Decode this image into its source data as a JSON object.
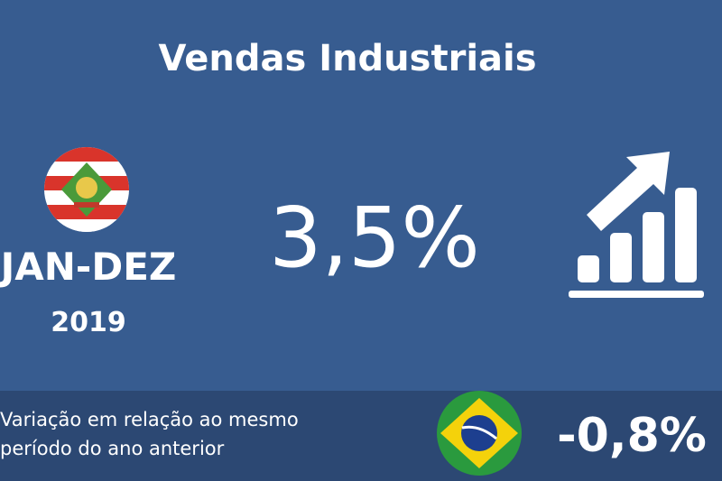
{
  "header": {
    "title": "Vendas Industriais"
  },
  "period": {
    "label": "JAN-DEZ",
    "year": "2019"
  },
  "state_result": {
    "value": "3,5%"
  },
  "footer": {
    "caption_lines": [
      "Variação em relação ao mesmo",
      "período do ano anterior"
    ],
    "national_value": "-0,8%"
  }
}
